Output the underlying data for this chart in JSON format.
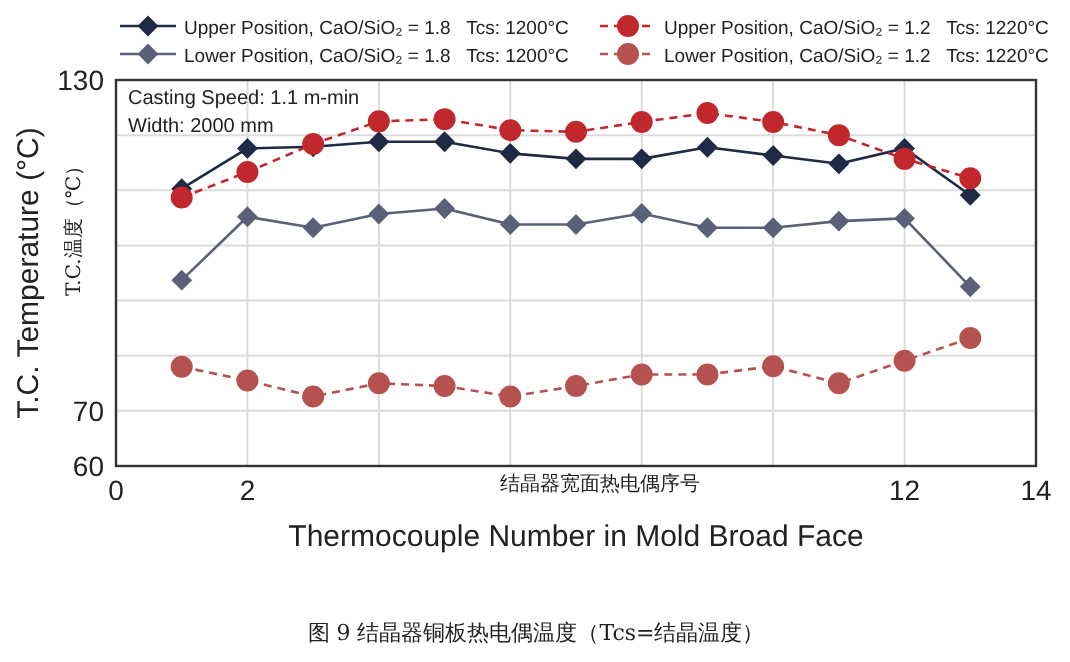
{
  "chart_data": {
    "type": "line",
    "xlabel": "Thermocouple Number in Mold Broad Face",
    "ylabel": "T.C. Temperature (°C)",
    "x": [
      1,
      2,
      3,
      4,
      5,
      6,
      7,
      8,
      9,
      10,
      11,
      12,
      13
    ],
    "xlim": [
      0,
      14
    ],
    "xticks": [
      0,
      2,
      {
        "value": 4,
        "label": null
      },
      {
        "value": 6,
        "label": null
      },
      {
        "value": 8,
        "label": null
      },
      {
        "value": 10,
        "label": null
      },
      12,
      14
    ],
    "ylim": [
      60,
      130
    ],
    "yticks": [
      60,
      70,
      {
        "value": 80,
        "label": null
      },
      {
        "value": 90,
        "label": null
      },
      {
        "value": 100,
        "label": null
      },
      {
        "value": 110,
        "label": null
      },
      {
        "value": 120,
        "label": null
      },
      130
    ],
    "grid": true,
    "legend": "top",
    "series": [
      {
        "name": "Upper Position, CaO/SiO₂ = 1.8   Tcs: 1200°C",
        "color": "#1f2a44",
        "marker": "diamond",
        "line_style": "solid",
        "values": [
          110.3,
          117.6,
          117.9,
          118.8,
          118.8,
          116.7,
          115.7,
          115.7,
          117.8,
          116.3,
          114.8,
          117.6,
          109.1
        ]
      },
      {
        "name": "Lower Position, CaO/SiO₂ = 1.8   Tcs: 1200°C",
        "color": "#5a6077",
        "marker": "diamond",
        "line_style": "solid",
        "values": [
          93.7,
          105.2,
          103.2,
          105.7,
          106.7,
          103.8,
          103.8,
          105.8,
          103.2,
          103.2,
          104.4,
          104.9,
          92.5
        ]
      },
      {
        "name": "Upper Position, CaO/SiO₂ = 1.2   Tcs: 1220°C",
        "color": "#c0282d",
        "marker": "circle",
        "line_style": "dashed",
        "values": [
          108.7,
          113.3,
          118.4,
          122.5,
          122.9,
          120.9,
          120.6,
          122.4,
          124.0,
          122.4,
          120.0,
          115.7,
          112.2
        ]
      },
      {
        "name": "Lower Position, CaO/SiO₂ = 1.2   Tcs: 1220°C",
        "color": "#b5524f",
        "marker": "circle",
        "line_style": "dashed",
        "values": [
          78.0,
          75.5,
          72.6,
          75.0,
          74.5,
          72.6,
          74.5,
          76.6,
          76.6,
          78.1,
          75.0,
          79.1,
          83.2
        ]
      }
    ],
    "annotations": [
      "Casting Speed: 1.1 m-min",
      "Width: 2000 mm",
      "T.C.温度（℃）",
      "结晶器宽面热电偶序号",
      "图 9  结晶器铜板热电偶温度（Tcs=结晶温度）"
    ]
  }
}
